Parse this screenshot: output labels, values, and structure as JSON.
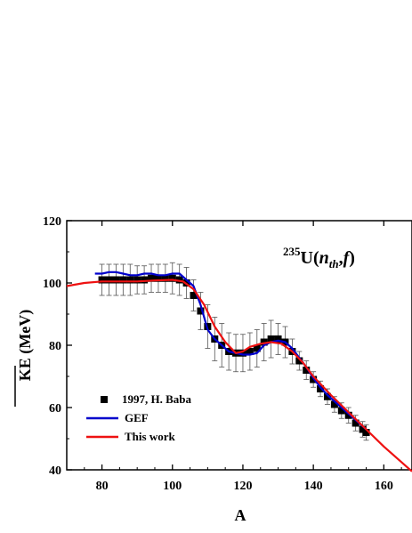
{
  "chart_data": {
    "type": "scatter",
    "xlabel": "A",
    "ylabel": "KE (MeV)",
    "xlim": [
      70,
      168
    ],
    "ylim": [
      40,
      120
    ],
    "x_ticks": [
      80,
      100,
      120,
      140,
      160
    ],
    "y_ticks": [
      40,
      60,
      80,
      100,
      120
    ],
    "annotation": {
      "sup": "235",
      "main": "U(",
      "italic": "n",
      "sub": "th",
      "rest": ",",
      "italic2": "f",
      "close": ")"
    },
    "legend_position": "bottom-left",
    "series": [
      {
        "name": "1997, H. Baba",
        "style": "square-markers-with-errorbars",
        "color": "#000000",
        "x": [
          80,
          82,
          84,
          86,
          88,
          90,
          92,
          94,
          96,
          98,
          100,
          102,
          104,
          106,
          108,
          110,
          112,
          114,
          116,
          118,
          120,
          122,
          124,
          126,
          128,
          130,
          132,
          134,
          136,
          138,
          140,
          142,
          144,
          146,
          148,
          150,
          152,
          154,
          155
        ],
        "y": [
          101,
          101,
          101,
          101,
          101,
          101,
          101,
          101.5,
          101.5,
          101.5,
          101.5,
          101,
          100,
          96,
          91,
          86,
          82,
          80,
          78,
          77.5,
          77.5,
          78,
          79,
          81,
          82,
          82,
          81,
          78,
          75,
          72,
          69,
          66,
          63.5,
          61,
          59,
          57.5,
          55,
          53,
          52
        ],
        "err": [
          5,
          5,
          5,
          5,
          5,
          4.5,
          4.5,
          4.5,
          4.5,
          4.5,
          5,
          5,
          5,
          5,
          6,
          7,
          7,
          7,
          6,
          6,
          6,
          6,
          6,
          6,
          6,
          5,
          5,
          4,
          3,
          3,
          2.5,
          2.5,
          2.5,
          2.5,
          2.5,
          2.5,
          2.5,
          2.5,
          2.5
        ]
      },
      {
        "name": "GEF",
        "style": "line",
        "color": "#0000cc",
        "x": [
          78,
          80,
          82,
          84,
          86,
          88,
          90,
          92,
          94,
          96,
          98,
          100,
          102,
          104,
          106,
          108,
          110,
          112,
          114,
          116,
          118,
          120,
          122,
          124,
          126,
          128,
          130,
          132,
          134,
          136,
          138,
          140,
          142,
          144,
          146,
          148,
          150,
          152,
          154,
          155
        ],
        "y": [
          103,
          103,
          103.5,
          103.5,
          103,
          102.5,
          102.5,
          103,
          103,
          102.5,
          102.5,
          103,
          103,
          101,
          99,
          93,
          85,
          82,
          80,
          78,
          77.5,
          77,
          77,
          77.5,
          80,
          81,
          81.5,
          81,
          79,
          76,
          73,
          69.5,
          66.5,
          64,
          62,
          60,
          58,
          56,
          54,
          53
        ]
      },
      {
        "name": "This work",
        "style": "line",
        "color": "#ee1111",
        "x": [
          70,
          75,
          80,
          85,
          90,
          95,
          100,
          103,
          106,
          109,
          112,
          115,
          118,
          120,
          122,
          125,
          128,
          131,
          134,
          137,
          140,
          145,
          150,
          155,
          160,
          165,
          168
        ],
        "y": [
          99,
          100,
          100.5,
          100.5,
          100.5,
          100.8,
          101,
          100.5,
          98,
          93,
          86,
          81,
          77.5,
          78,
          79.5,
          80.5,
          81,
          80.5,
          78,
          74.5,
          70,
          64,
          58.5,
          53,
          47.5,
          42.5,
          39.5
        ]
      }
    ]
  }
}
